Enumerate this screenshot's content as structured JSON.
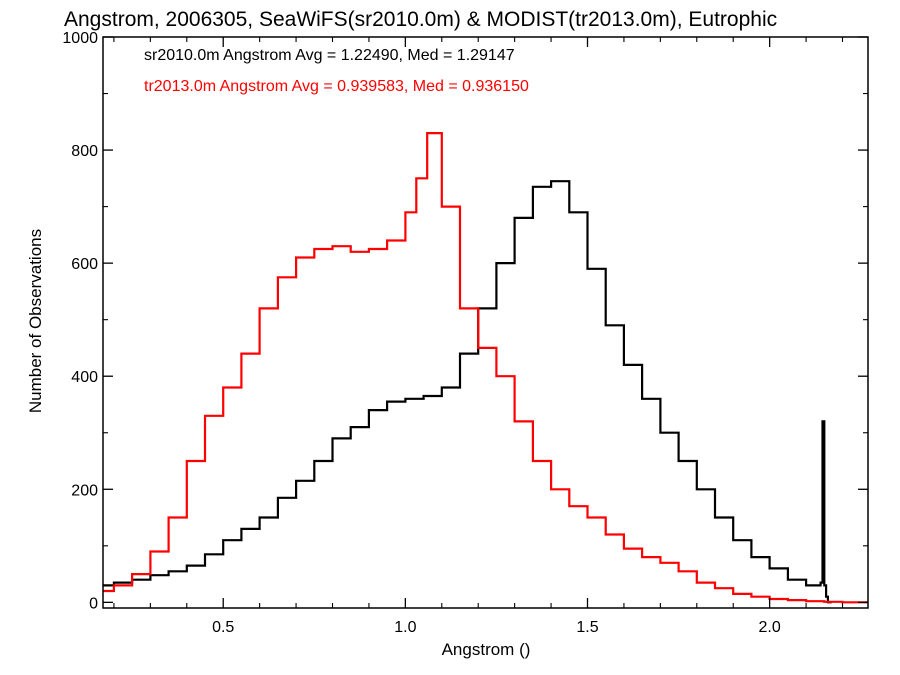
{
  "chart_data": {
    "type": "line",
    "title": "Angstrom, 2006305, SeaWiFS(sr2010.0m) & MODIST(tr2013.0m), Eutrophic",
    "xlabel": "Angstrom ()",
    "ylabel": "Number of Observations",
    "xlim": [
      0.17,
      2.27
    ],
    "ylim": [
      -10,
      1000
    ],
    "x_ticks": [
      0.5,
      1.0,
      1.5,
      2.0
    ],
    "x_tick_labels": [
      "0.5",
      "1.0",
      "1.5",
      "2.0"
    ],
    "y_ticks": [
      0,
      200,
      400,
      600,
      800,
      1000
    ],
    "y_tick_labels": [
      "0",
      "200",
      "400",
      "600",
      "800",
      "1000"
    ],
    "annotations": [
      {
        "text": "sr2010.0m Angstrom Avg = 1.22490, Med = 1.29147",
        "color": "#000000"
      },
      {
        "text": "tr2013.0m Angstrom Avg = 0.939583, Med = 0.936150",
        "color": "#ff0000"
      }
    ],
    "series": [
      {
        "color": "#000000",
        "x": [
          0.17,
          0.2,
          0.25,
          0.3,
          0.35,
          0.4,
          0.45,
          0.5,
          0.55,
          0.6,
          0.65,
          0.7,
          0.75,
          0.8,
          0.85,
          0.9,
          0.95,
          1.0,
          1.05,
          1.1,
          1.15,
          1.2,
          1.25,
          1.3,
          1.35,
          1.4,
          1.45,
          1.5,
          1.55,
          1.6,
          1.65,
          1.7,
          1.75,
          1.8,
          1.85,
          1.9,
          1.95,
          2.0,
          2.05,
          2.1,
          2.14,
          2.145,
          2.15,
          2.155,
          2.16,
          2.17
        ],
        "values": [
          30,
          35,
          40,
          48,
          55,
          65,
          85,
          110,
          130,
          150,
          185,
          215,
          250,
          290,
          310,
          340,
          355,
          360,
          365,
          380,
          440,
          520,
          600,
          680,
          735,
          745,
          690,
          590,
          490,
          420,
          360,
          300,
          250,
          200,
          150,
          110,
          80,
          60,
          40,
          30,
          35,
          320,
          30,
          10,
          0,
          0
        ]
      },
      {
        "color": "#ff0000",
        "x": [
          0.17,
          0.2,
          0.25,
          0.3,
          0.35,
          0.4,
          0.45,
          0.5,
          0.55,
          0.6,
          0.65,
          0.7,
          0.75,
          0.8,
          0.85,
          0.9,
          0.95,
          1.0,
          1.03,
          1.06,
          1.1,
          1.15,
          1.2,
          1.25,
          1.3,
          1.35,
          1.4,
          1.45,
          1.5,
          1.55,
          1.6,
          1.65,
          1.7,
          1.75,
          1.8,
          1.85,
          1.9,
          1.95,
          2.0,
          2.05,
          2.1,
          2.15,
          2.2,
          2.27
        ],
        "values": [
          20,
          30,
          50,
          90,
          150,
          250,
          330,
          380,
          440,
          520,
          575,
          610,
          625,
          630,
          620,
          625,
          640,
          690,
          750,
          830,
          700,
          520,
          450,
          400,
          320,
          250,
          200,
          170,
          150,
          120,
          95,
          80,
          70,
          55,
          35,
          25,
          15,
          10,
          6,
          4,
          2,
          1,
          0,
          0
        ]
      }
    ]
  }
}
